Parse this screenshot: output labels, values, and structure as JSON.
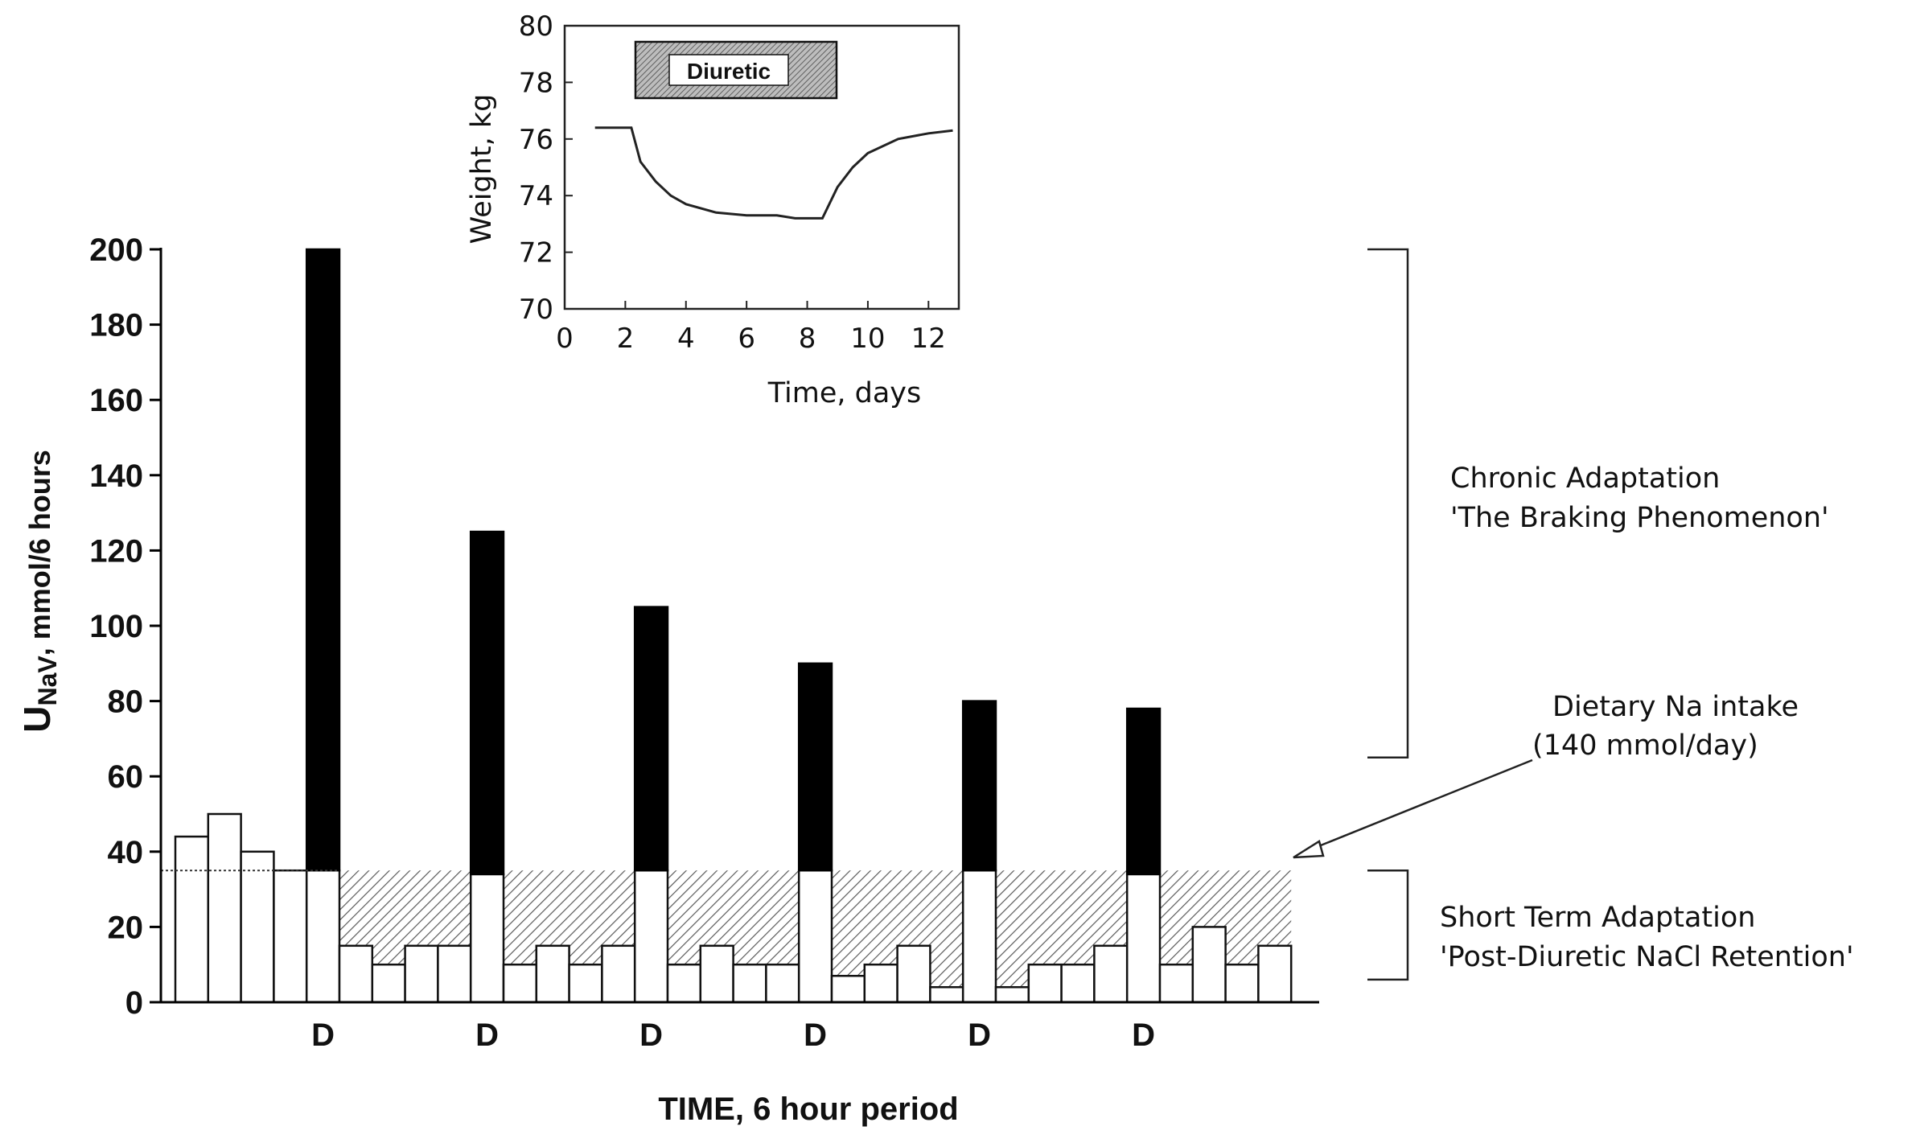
{
  "chart_data": [
    {
      "type": "bar",
      "role": "main",
      "title": "",
      "xlabel": "TIME, 6 hour period",
      "ylabel_main": "U",
      "ylabel_subscript": "NaV",
      "ylabel_rest": ", mmol/6 hours",
      "ylim": [
        0,
        200
      ],
      "yticks": [
        0,
        20,
        40,
        60,
        80,
        100,
        120,
        140,
        160,
        180,
        200
      ],
      "periods": [
        {
          "value": 44,
          "diuretic_excess": 0
        },
        {
          "value": 50,
          "diuretic_excess": 0
        },
        {
          "value": 40,
          "diuretic_excess": 0
        },
        {
          "value": 35,
          "diuretic_excess": 0
        },
        {
          "value": 35,
          "diuretic_excess": 165,
          "label": "D"
        },
        {
          "value": 15,
          "diuretic_excess": 0
        },
        {
          "value": 10,
          "diuretic_excess": 0
        },
        {
          "value": 15,
          "diuretic_excess": 0
        },
        {
          "value": 15,
          "diuretic_excess": 0
        },
        {
          "value": 34,
          "diuretic_excess": 91,
          "label": "D"
        },
        {
          "value": 10,
          "diuretic_excess": 0
        },
        {
          "value": 15,
          "diuretic_excess": 0
        },
        {
          "value": 10,
          "diuretic_excess": 0
        },
        {
          "value": 15,
          "diuretic_excess": 0
        },
        {
          "value": 35,
          "diuretic_excess": 70,
          "label": "D"
        },
        {
          "value": 10,
          "diuretic_excess": 0
        },
        {
          "value": 15,
          "diuretic_excess": 0
        },
        {
          "value": 10,
          "diuretic_excess": 0
        },
        {
          "value": 10,
          "diuretic_excess": 0
        },
        {
          "value": 35,
          "diuretic_excess": 55,
          "label": "D"
        },
        {
          "value": 7,
          "diuretic_excess": 0
        },
        {
          "value": 10,
          "diuretic_excess": 0
        },
        {
          "value": 15,
          "diuretic_excess": 0
        },
        {
          "value": 4,
          "diuretic_excess": 0
        },
        {
          "value": 35,
          "diuretic_excess": 45,
          "label": "D"
        },
        {
          "value": 4,
          "diuretic_excess": 0
        },
        {
          "value": 10,
          "diuretic_excess": 0
        },
        {
          "value": 10,
          "diuretic_excess": 0
        },
        {
          "value": 15,
          "diuretic_excess": 0
        },
        {
          "value": 34,
          "diuretic_excess": 44,
          "label": "D"
        },
        {
          "value": 10,
          "diuretic_excess": 0
        },
        {
          "value": 20,
          "diuretic_excess": 0
        },
        {
          "value": 10,
          "diuretic_excess": 0
        },
        {
          "value": 15,
          "diuretic_excess": 0
        }
      ],
      "dietary_intake_level": 35,
      "annotations": {
        "chronic_line1": "Chronic Adaptation",
        "chronic_line2": "'The Braking Phenomenon'",
        "dietary_line1": "Dietary Na intake",
        "dietary_line2": "(140 mmol/day)",
        "short_line1": "Short Term Adaptation",
        "short_line2": "'Post-Diuretic NaCl Retention'"
      },
      "bracket_ranges": {
        "chronic": [
          65,
          200
        ],
        "short_term": [
          6,
          35
        ]
      }
    },
    {
      "type": "line",
      "role": "inset",
      "title": "",
      "xlabel": "Time, days",
      "ylabel": "Weight, kg",
      "xlim": [
        0,
        13
      ],
      "ylim": [
        70,
        80
      ],
      "xticks": [
        0,
        2,
        4,
        6,
        8,
        10,
        12
      ],
      "yticks": [
        70,
        72,
        74,
        76,
        78,
        80
      ],
      "legend_box_label": "Diuretic",
      "x": [
        1.0,
        2.2,
        2.5,
        3.0,
        3.5,
        4.0,
        5.0,
        6.0,
        7.0,
        7.6,
        8.0,
        8.5,
        9.0,
        9.5,
        10.0,
        11.0,
        12.0,
        12.8
      ],
      "y": [
        76.4,
        76.4,
        75.2,
        74.5,
        74.0,
        73.7,
        73.4,
        73.3,
        73.3,
        73.2,
        73.2,
        73.2,
        74.3,
        75.0,
        75.5,
        76.0,
        76.2,
        76.3
      ]
    }
  ]
}
